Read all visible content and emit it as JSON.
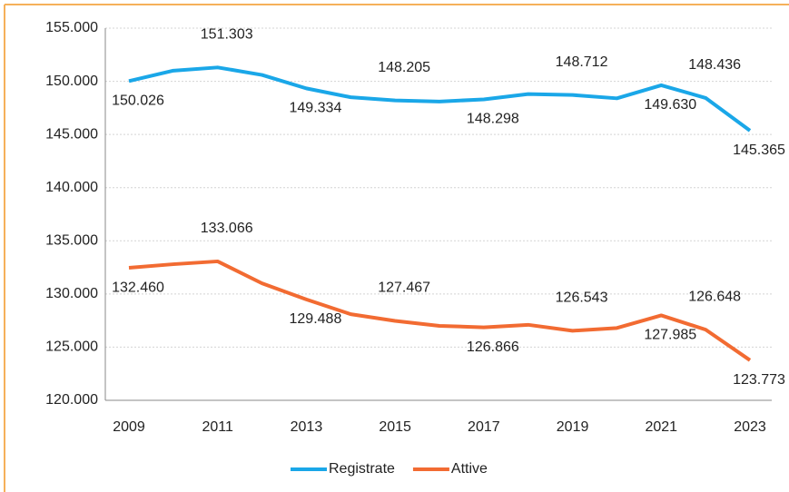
{
  "chart_data": {
    "type": "line",
    "categories": [
      "2009",
      null,
      "2011",
      null,
      "2013",
      null,
      "2015",
      null,
      "2017",
      null,
      "2019",
      null,
      "2021",
      null,
      "2023"
    ],
    "series": [
      {
        "name": "Registrate",
        "color": "#1aa7e8",
        "values": [
          150026,
          151000,
          151303,
          150600,
          149334,
          148500,
          148205,
          148100,
          148298,
          148800,
          148712,
          148400,
          149630,
          148436,
          145365
        ],
        "value_labels": [
          "150.026",
          null,
          "151.303",
          null,
          "149.334",
          null,
          "148.205",
          null,
          "148.298",
          null,
          "148.712",
          null,
          "149.630",
          "148.436",
          "145.365"
        ]
      },
      {
        "name": "Attive",
        "color": "#f26b32",
        "values": [
          132460,
          132800,
          133066,
          131000,
          129488,
          128100,
          127467,
          127000,
          126866,
          127100,
          126543,
          126800,
          127985,
          126648,
          123773
        ],
        "value_labels": [
          "132.460",
          null,
          "133.066",
          null,
          "129.488",
          null,
          "127.467",
          null,
          "126.866",
          null,
          "126.543",
          null,
          "127.985",
          "126.648",
          "123.773"
        ]
      }
    ],
    "ylim": [
      120000,
      155000
    ],
    "yticks": [
      {
        "value": 120000,
        "label": "120.000"
      },
      {
        "value": 125000,
        "label": "125.000"
      },
      {
        "value": 130000,
        "label": "130.000"
      },
      {
        "value": 135000,
        "label": "135.000"
      },
      {
        "value": 140000,
        "label": "140.000"
      },
      {
        "value": 145000,
        "label": "145.000"
      },
      {
        "value": 150000,
        "label": "150.000"
      },
      {
        "value": 155000,
        "label": "155.000"
      }
    ],
    "grid": true,
    "legend": "bottom"
  }
}
